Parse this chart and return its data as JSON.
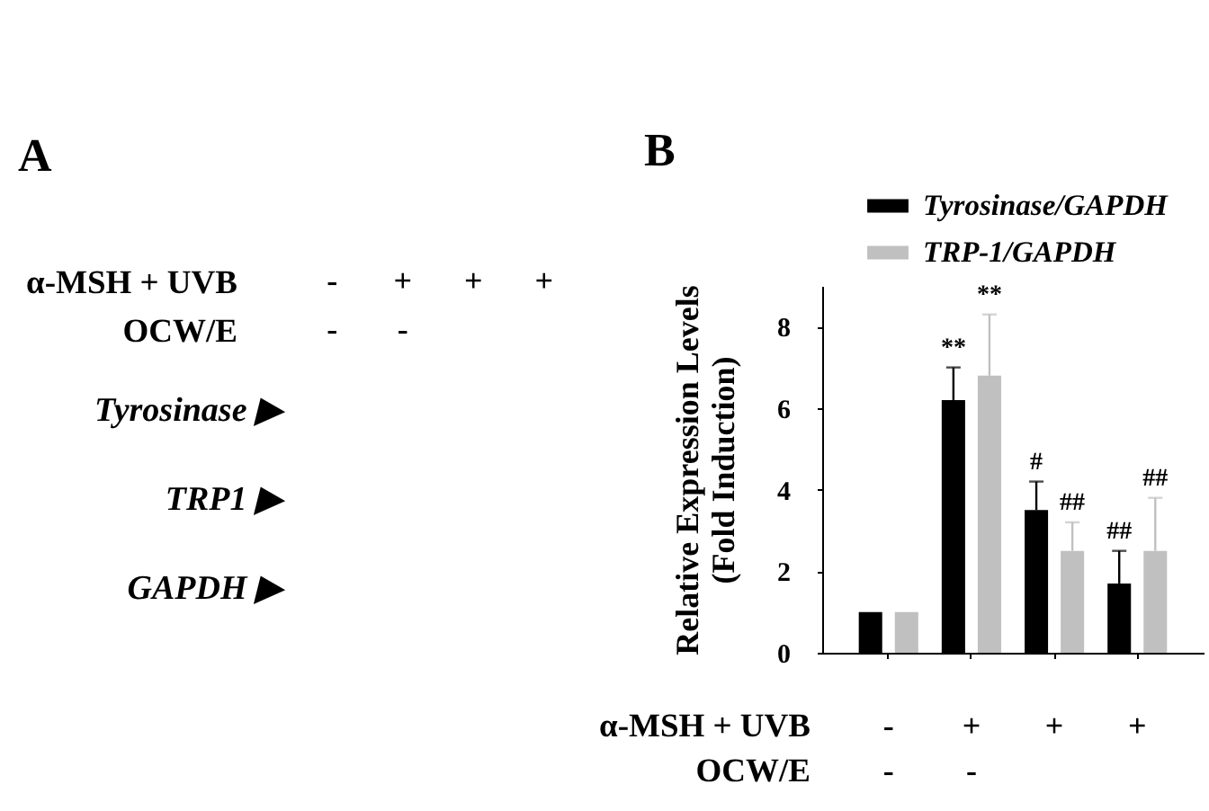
{
  "chart_data": [
    {
      "type": "other",
      "title": "A",
      "categories": [
        "-\n-",
        "+\n-",
        "+",
        "+"
      ],
      "xlabel": "α-MSH + UVB\nOCW/E",
      "annotations": [
        "Tyrosinase ▶",
        "TRP1 ▶",
        "GAPDH ▶"
      ]
    },
    {
      "type": "bar",
      "title": "B",
      "categories": [
        "-\n-",
        "+\n-",
        "+",
        "+"
      ],
      "xlabel": "α-MSH + UVB\nOCW/E",
      "ylabel": "Relative Expression Levels\n(Fold Induction)",
      "ylim": [
        0,
        9
      ],
      "yticks": [
        0,
        2,
        4,
        6,
        8
      ],
      "legend": "top",
      "series": [
        {
          "name": "Tyrosinase/GAPDH",
          "color": "#000000",
          "values": [
            1,
            6.2,
            3.5,
            1.7
          ],
          "errors": [
            null,
            [
              6.2,
              7.0
            ],
            [
              3.5,
              4.2
            ],
            [
              1.7,
              2.5
            ]
          ],
          "value_labels": [
            null,
            "**",
            "#",
            "##"
          ]
        },
        {
          "name": "TRP-1/GAPDH",
          "color": "#c0c0c0",
          "values": [
            1,
            6.8,
            2.5,
            2.5
          ],
          "errors": [
            null,
            [
              6.8,
              8.3
            ],
            [
              2.5,
              3.2
            ],
            [
              2.5,
              3.8
            ]
          ],
          "value_labels": [
            null,
            "**",
            "##",
            "##"
          ]
        }
      ]
    }
  ]
}
